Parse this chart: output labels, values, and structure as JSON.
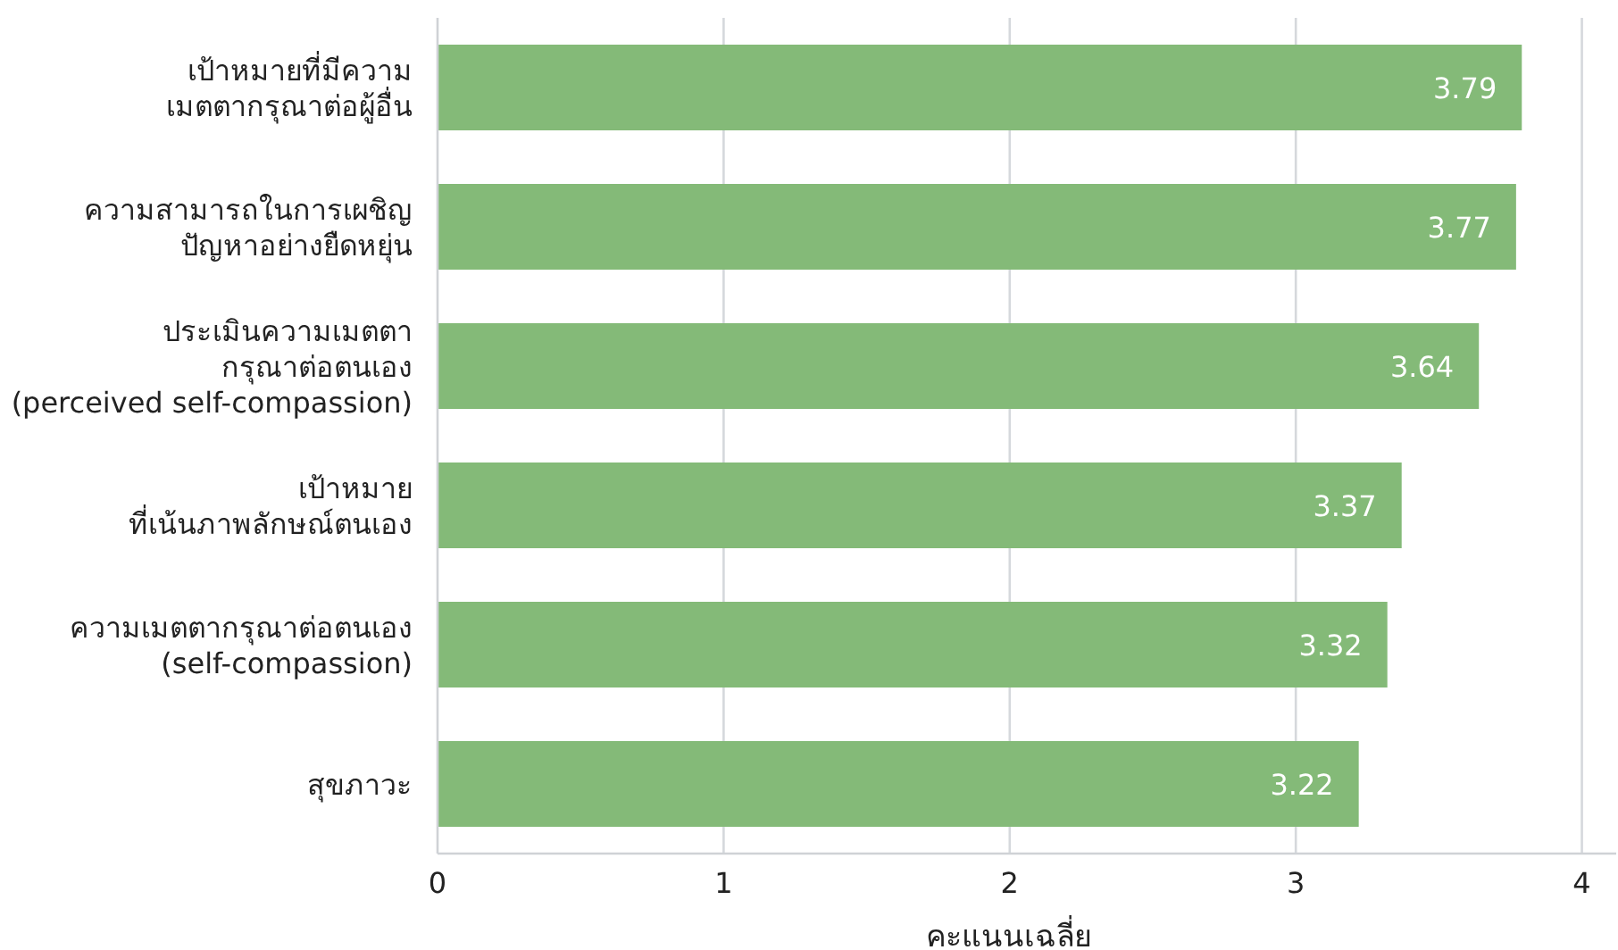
{
  "chart_data": {
    "type": "bar",
    "orientation": "horizontal",
    "xlabel": "คะแนนเฉลี่ย",
    "categories": [
      "เป้าหมายที่มีความ\nเมตตากรุณาต่อผู้อื่น",
      "ความสามารถในการเผชิญ\nปัญหาอย่างยืดหยุ่น",
      "ประเมินความเมตตา\nกรุณาต่อตนเอง\n(perceived self-compassion)",
      "เป้าหมาย\nที่เน้นภาพลักษณ์ตนเอง",
      "ความเมตตากรุณาต่อตนเอง\n(self-compassion)",
      "สุขภาวะ"
    ],
    "values": [
      3.79,
      3.77,
      3.64,
      3.37,
      3.32,
      3.22
    ],
    "color": "#84ba78",
    "xlim": [
      0,
      4.12
    ],
    "xticks": [
      0,
      1,
      2,
      3,
      4
    ],
    "grid": "x",
    "data_labels": true
  }
}
